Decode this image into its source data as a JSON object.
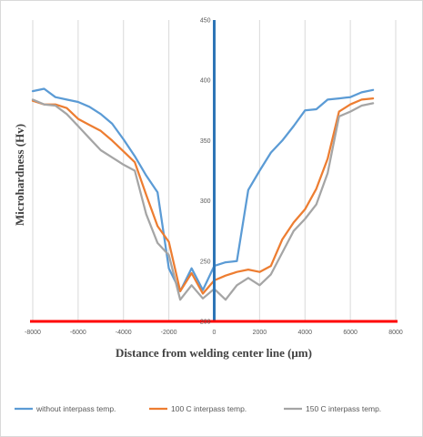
{
  "chart_data": {
    "type": "line",
    "title": "",
    "xlabel": "Distance from welding center line (μm)",
    "ylabel": "Microhardness (Hv)",
    "xlim": [
      -8000,
      8000
    ],
    "ylim": [
      200,
      450
    ],
    "x_ticks": [
      "-8000",
      "-6000",
      "-4000",
      "-2000",
      "0",
      "2000",
      "4000",
      "6000",
      "8000"
    ],
    "y_ticks": [
      "200",
      "250",
      "300",
      "350",
      "400",
      "450"
    ],
    "grid": "vertical",
    "legend_position": "bottom",
    "reference_lines": [
      {
        "orientation": "vertical",
        "value": 0,
        "color": "#2e75b6"
      },
      {
        "orientation": "horizontal",
        "value": 200,
        "color": "#ff0000"
      }
    ],
    "series": [
      {
        "name": "without interpass temp.",
        "color": "#5b9bd5",
        "x": [
          -8000,
          -7500,
          -7000,
          -6500,
          -6000,
          -5500,
          -5000,
          -4500,
          -4000,
          -3500,
          -3000,
          -2500,
          -2000,
          -1500,
          -1000,
          -500,
          0,
          500,
          1000,
          1500,
          2000,
          2500,
          3000,
          3500,
          4000,
          4500,
          5000,
          5500,
          6000,
          6500,
          7000
        ],
        "y": [
          391,
          393,
          386,
          384,
          382,
          378,
          372,
          364,
          351,
          337,
          321,
          307,
          244,
          225,
          244,
          226,
          246,
          249,
          250,
          309,
          325,
          340,
          350,
          362,
          375,
          376,
          384,
          385,
          386,
          390,
          392
        ]
      },
      {
        "name": "100 C interpass temp.",
        "color": "#ed7d31",
        "x": [
          -8000,
          -7500,
          -7000,
          -6500,
          -6000,
          -5500,
          -5000,
          -4500,
          -4000,
          -3500,
          -3000,
          -2500,
          -2000,
          -1500,
          -1000,
          -500,
          0,
          500,
          1000,
          1500,
          2000,
          2500,
          3000,
          3500,
          4000,
          4500,
          5000,
          5500,
          6000,
          6500,
          7000
        ],
        "y": [
          383,
          380,
          380,
          377,
          368,
          363,
          358,
          350,
          341,
          332,
          305,
          279,
          266,
          225,
          240,
          223,
          234,
          238,
          241,
          243,
          241,
          246,
          268,
          282,
          293,
          310,
          335,
          374,
          380,
          384,
          385
        ]
      },
      {
        "name": "150 C interpass temp.",
        "color": "#a5a5a5",
        "x": [
          -8000,
          -7500,
          -7000,
          -6500,
          -6000,
          -5500,
          -5000,
          -4500,
          -4000,
          -3500,
          -3000,
          -2500,
          -2000,
          -1500,
          -1000,
          -500,
          0,
          500,
          1000,
          1500,
          2000,
          2500,
          3000,
          3500,
          4000,
          4500,
          5000,
          5500,
          6000,
          6500,
          7000
        ],
        "y": [
          384,
          380,
          379,
          372,
          362,
          352,
          342,
          336,
          330,
          325,
          289,
          265,
          255,
          218,
          230,
          219,
          227,
          218,
          230,
          236,
          230,
          239,
          257,
          275,
          285,
          297,
          323,
          370,
          374,
          379,
          381
        ]
      }
    ]
  }
}
